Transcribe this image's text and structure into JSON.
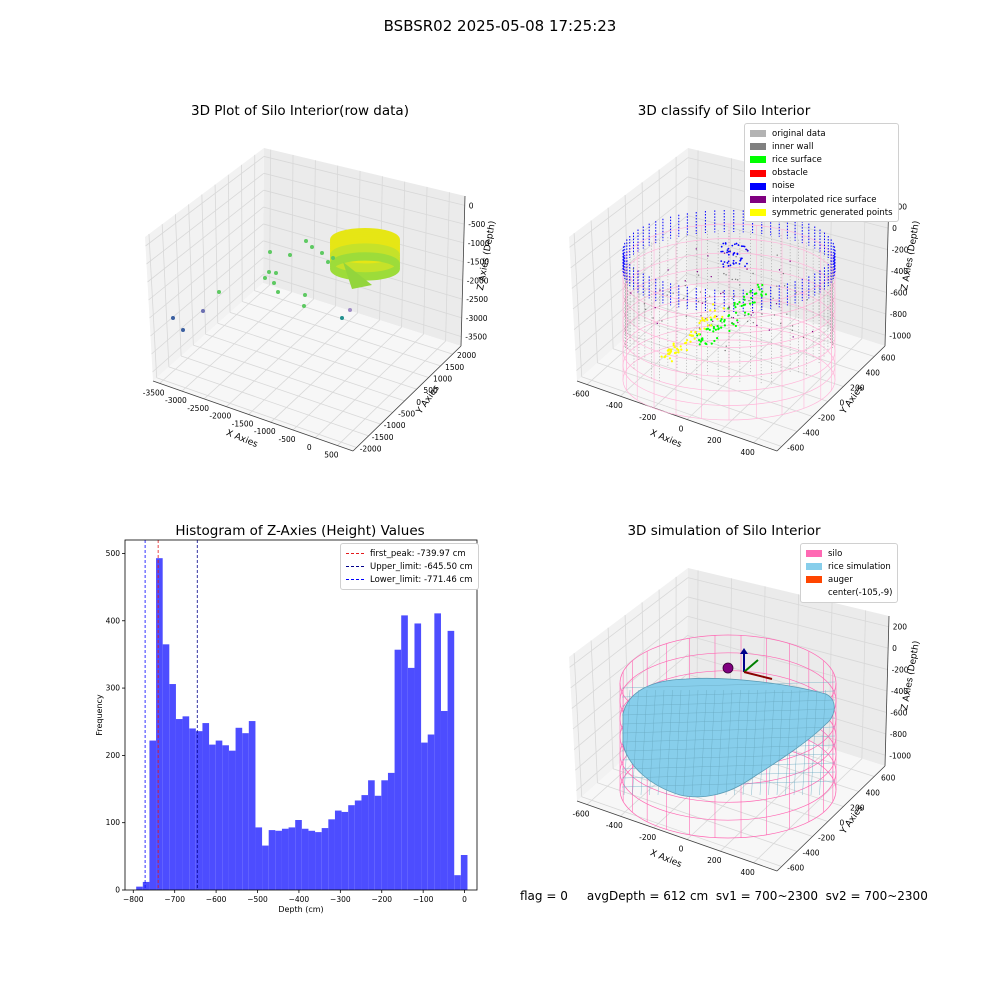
{
  "suptitle": "BSBSR02 2025-05-08 17:25:23",
  "chart_data": [
    {
      "type": "scatter",
      "title": "3D Plot of Silo Interior(row data)",
      "xlabel": "X Axies",
      "ylabel": "Y Axies",
      "zlabel": "Z Axies (Depth)",
      "x_ticks": [
        "-3500",
        "-3000",
        "-2500",
        "-2000",
        "-1500",
        "-1000",
        "-500",
        "0",
        "500"
      ],
      "y_ticks": [
        "-2000",
        "-1500",
        "-1000",
        "-500",
        "0",
        "500",
        "1000",
        "1500",
        "2000"
      ],
      "z_ticks": [
        "0",
        "-500",
        "-1000",
        "-1500",
        "-2000",
        "-2500",
        "-3000",
        "-3500"
      ]
    },
    {
      "type": "scatter",
      "title": "3D classify of Silo Interior",
      "xlabel": "X Axies",
      "ylabel": "Y Axies",
      "zlabel": "Z Axies (Depth)",
      "x_ticks": [
        "-600",
        "-400",
        "-200",
        "0",
        "200",
        "400"
      ],
      "y_ticks": [
        "-600",
        "-400",
        "-200",
        "0",
        "200",
        "400",
        "600"
      ],
      "z_ticks": [
        "200",
        "0",
        "-200",
        "-400",
        "-600",
        "-800",
        "-1000"
      ],
      "legend": [
        {
          "name": "original data",
          "color": "#b3b3b3"
        },
        {
          "name": "inner wall",
          "color": "#808080"
        },
        {
          "name": "rice surface",
          "color": "#00ff00"
        },
        {
          "name": "obstacle",
          "color": "#ff0000"
        },
        {
          "name": "noise",
          "color": "#0000ff"
        },
        {
          "name": "interpolated rice surface",
          "color": "#800080"
        },
        {
          "name": "symmetric generated points",
          "color": "#ffff00"
        }
      ]
    },
    {
      "type": "bar",
      "title": "Histogram of Z-Axies (Height) Values",
      "xlabel": "Depth (cm)",
      "ylabel": "Frequency",
      "xlim": [
        -820,
        30
      ],
      "ylim": [
        0,
        520
      ],
      "x_ticks": [
        -800,
        -700,
        -600,
        -500,
        -400,
        -300,
        -200,
        -100,
        0
      ],
      "y_ticks": [
        0,
        100,
        200,
        300,
        400,
        500
      ],
      "bin_width": 16,
      "bins": [
        {
          "x": -785,
          "v": 5
        },
        {
          "x": -769,
          "v": 12
        },
        {
          "x": -753,
          "v": 222
        },
        {
          "x": -737,
          "v": 493
        },
        {
          "x": -721,
          "v": 365
        },
        {
          "x": -705,
          "v": 306
        },
        {
          "x": -689,
          "v": 254
        },
        {
          "x": -673,
          "v": 258
        },
        {
          "x": -657,
          "v": 240
        },
        {
          "x": -641,
          "v": 236
        },
        {
          "x": -625,
          "v": 248
        },
        {
          "x": -609,
          "v": 216
        },
        {
          "x": -593,
          "v": 222
        },
        {
          "x": -577,
          "v": 215
        },
        {
          "x": -561,
          "v": 207
        },
        {
          "x": -545,
          "v": 241
        },
        {
          "x": -529,
          "v": 233
        },
        {
          "x": -513,
          "v": 251
        },
        {
          "x": -497,
          "v": 93
        },
        {
          "x": -481,
          "v": 66
        },
        {
          "x": -465,
          "v": 89
        },
        {
          "x": -449,
          "v": 88
        },
        {
          "x": -433,
          "v": 91
        },
        {
          "x": -417,
          "v": 93
        },
        {
          "x": -401,
          "v": 104
        },
        {
          "x": -385,
          "v": 91
        },
        {
          "x": -369,
          "v": 88
        },
        {
          "x": -353,
          "v": 86
        },
        {
          "x": -337,
          "v": 92
        },
        {
          "x": -321,
          "v": 105
        },
        {
          "x": -305,
          "v": 118
        },
        {
          "x": -289,
          "v": 116
        },
        {
          "x": -273,
          "v": 126
        },
        {
          "x": -257,
          "v": 133
        },
        {
          "x": -241,
          "v": 141
        },
        {
          "x": -225,
          "v": 163
        },
        {
          "x": -209,
          "v": 140
        },
        {
          "x": -193,
          "v": 163
        },
        {
          "x": -177,
          "v": 174
        },
        {
          "x": -161,
          "v": 357
        },
        {
          "x": -145,
          "v": 408
        },
        {
          "x": -129,
          "v": 330
        },
        {
          "x": -113,
          "v": 396
        },
        {
          "x": -97,
          "v": 219
        },
        {
          "x": -81,
          "v": 231
        },
        {
          "x": -65,
          "v": 411
        },
        {
          "x": -49,
          "v": 266
        },
        {
          "x": -33,
          "v": 385
        },
        {
          "x": -17,
          "v": 22
        },
        {
          "x": -1,
          "v": 52
        }
      ],
      "vlines": [
        {
          "name": "first_peak: -739.97 cm",
          "x": -739.97,
          "color": "#e41a1c"
        },
        {
          "name": "Upper_limit: -645.50 cm",
          "x": -645.5,
          "color": "#00008b"
        },
        {
          "name": "Lower_limit: -771.46 cm",
          "x": -771.46,
          "color": "#0000ff"
        }
      ],
      "bar_color": "#4d4dff"
    },
    {
      "type": "scatter",
      "title": "3D simulation of Silo Interior",
      "xlabel": "X Axies",
      "ylabel": "Y Axies",
      "zlabel": "Z Axies (Depth)",
      "x_ticks": [
        "-600",
        "-400",
        "-200",
        "0",
        "200",
        "400"
      ],
      "y_ticks": [
        "-600",
        "-400",
        "-200",
        "0",
        "200",
        "400",
        "600"
      ],
      "z_ticks": [
        "200",
        "0",
        "-200",
        "-400",
        "-600",
        "-800",
        "-1000"
      ],
      "legend": [
        {
          "name": "silo",
          "color": "#ff69b4"
        },
        {
          "name": "rice simulation",
          "color": "#87ceeb"
        },
        {
          "name": "auger",
          "color": "#ff4500"
        },
        {
          "name": "center(-105,-9)",
          "color": ""
        }
      ]
    }
  ],
  "footer": "flag = 0     avgDepth = 612 cm  sv1 = 700~2300  sv2 = 700~2300"
}
